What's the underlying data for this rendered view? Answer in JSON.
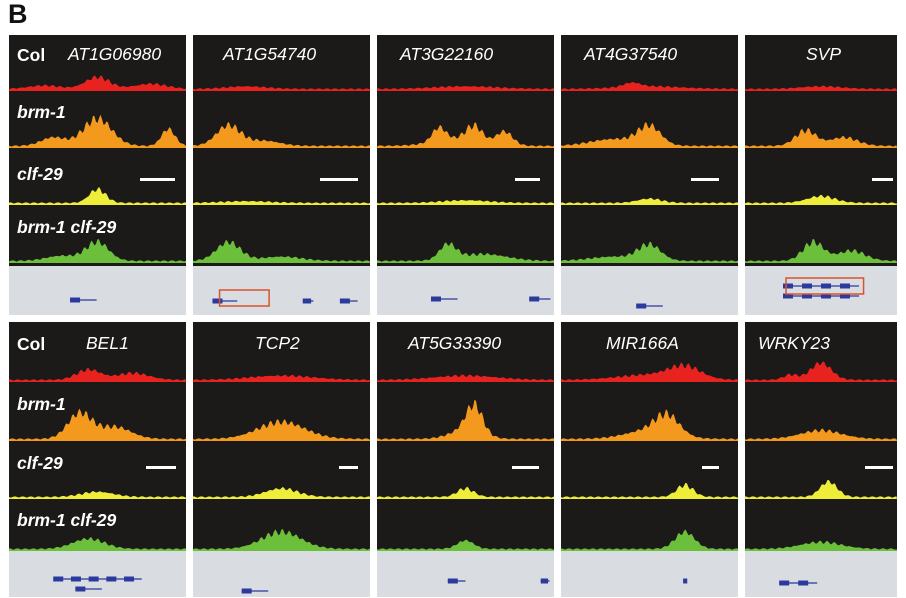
{
  "panel_letter": "B",
  "genotype_labels": [
    "Col",
    "brm-1",
    "clf-29",
    "brm-1 clf-29"
  ],
  "track_colors": {
    "Col": "#e8231f",
    "brm-1": "#f39a1e",
    "clf-29": "#eeee3a",
    "brm-1 clf-29": "#6cbf3a",
    "gene_model": "#2b3a9c",
    "highlight_box": "#d9532a"
  },
  "rows": [
    {
      "genes": [
        "AT1G06980",
        "AT1G54740",
        "AT3G22160",
        "AT4G37540",
        "SVP"
      ],
      "show_col_label": [
        true,
        false,
        false,
        false,
        false
      ],
      "show_genotype_labels": [
        true,
        false,
        false,
        false,
        false
      ]
    },
    {
      "genes": [
        "BEL1",
        "TCP2",
        "AT5G33390",
        "MIR166A",
        "WRKY23"
      ],
      "show_col_label": [
        true,
        false,
        false,
        false,
        false
      ],
      "show_genotype_labels": [
        true,
        false,
        false,
        false,
        false
      ]
    }
  ]
}
